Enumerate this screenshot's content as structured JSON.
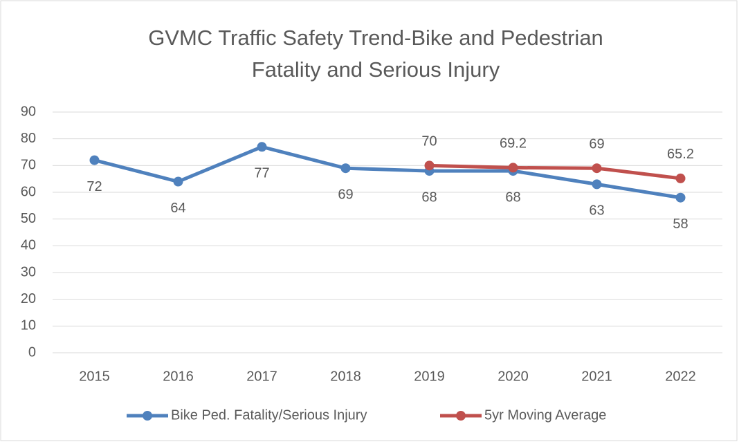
{
  "chart_data": {
    "type": "line",
    "title": [
      "GVMC Traffic Safety Trend-Bike and Pedestrian",
      "Fatality and Serious Injury"
    ],
    "categories": [
      "2015",
      "2016",
      "2017",
      "2018",
      "2019",
      "2020",
      "2021",
      "2022"
    ],
    "series": [
      {
        "name": "Bike Ped. Fatality/Serious Injury",
        "color": "#4f81bd",
        "label_position": "below",
        "values": [
          72,
          64,
          77,
          69,
          68,
          68,
          63,
          58
        ]
      },
      {
        "name": "5yr Moving Average",
        "color": "#c0504d",
        "label_position": "above",
        "values": [
          null,
          null,
          null,
          null,
          70,
          69.2,
          69,
          65.2
        ]
      }
    ],
    "ylim": [
      0,
      90
    ],
    "yticks": [
      0,
      10,
      20,
      30,
      40,
      50,
      60,
      70,
      80,
      90
    ],
    "grid": true,
    "legend": "bottom"
  }
}
